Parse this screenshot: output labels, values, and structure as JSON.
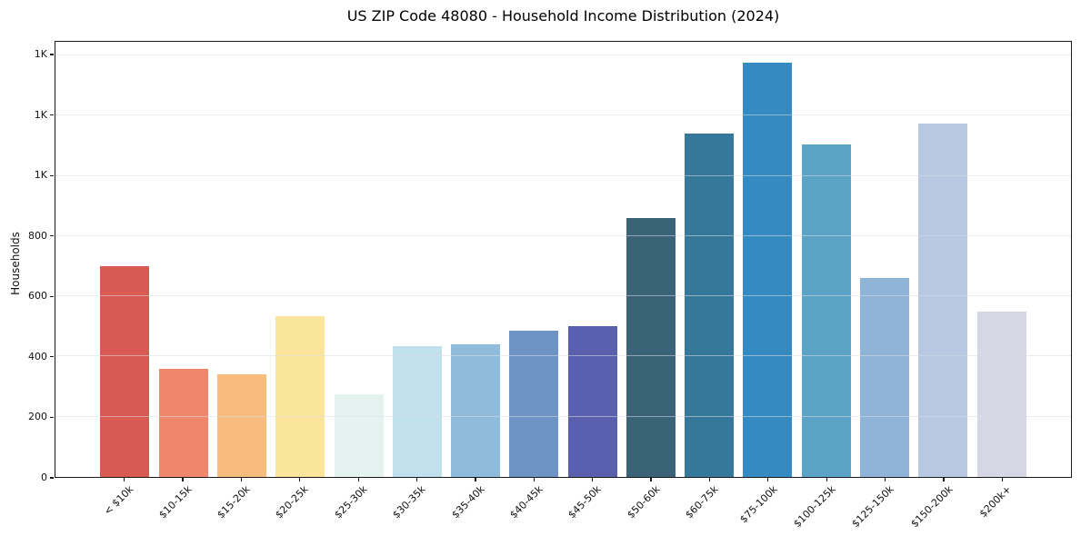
{
  "chart_data": {
    "type": "bar",
    "title": "US ZIP Code 48080 - Household Income Distribution (2024)",
    "xlabel": "",
    "ylabel": "Households",
    "categories": [
      "< $10k",
      "$10-15k",
      "$15-20k",
      "$20-25k",
      "$25-30k",
      "$30-35k",
      "$35-40k",
      "$40-45k",
      "$45-50k",
      "$50-60k",
      "$60-75k",
      "$75-100k",
      "$100-125k",
      "$125-150k",
      "$150-200k",
      "$200k+"
    ],
    "values": [
      700,
      360,
      340,
      535,
      275,
      435,
      440,
      485,
      500,
      860,
      1140,
      1375,
      1105,
      660,
      1175,
      550
    ],
    "bar_colors": [
      "#d85a52",
      "#f0876c",
      "#f9bc7f",
      "#fbe49c",
      "#e4f3f0",
      "#bfe0ec",
      "#8fbcda",
      "#6e94c6",
      "#5a5fae",
      "#3a6378",
      "#35789a",
      "#358bc1",
      "#5ba3c7",
      "#90b4d7",
      "#b7c8e0",
      "#d6d7e5"
    ],
    "ylim": [
      0,
      1445
    ],
    "grid": true,
    "legend": false,
    "y_ticks": [
      {
        "value": 0,
        "label": "0"
      },
      {
        "value": 200,
        "label": "200"
      },
      {
        "value": 400,
        "label": "400"
      },
      {
        "value": 600,
        "label": "600"
      },
      {
        "value": 800,
        "label": "800"
      },
      {
        "value": 1000,
        "label": "1K"
      },
      {
        "value": 1200,
        "label": "1K"
      },
      {
        "value": 1400,
        "label": "1K"
      }
    ],
    "axis_color": "#1a1a1a",
    "grid_color": "#dcdce2"
  }
}
